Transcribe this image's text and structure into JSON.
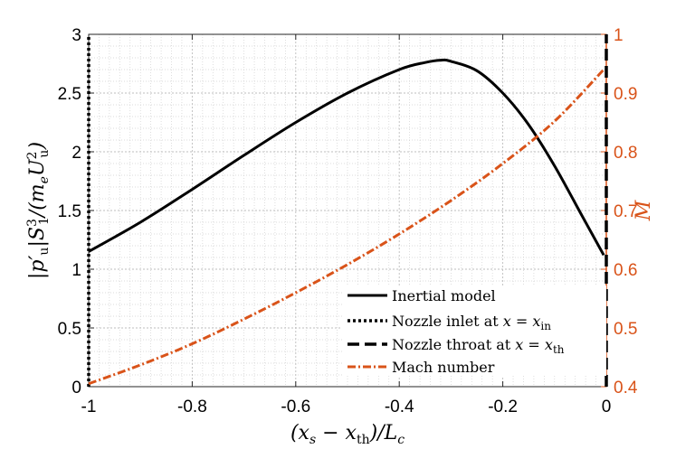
{
  "chart_data": {
    "type": "line",
    "xlabel": "(x_s − x_th)/L_c",
    "ylabel": "|p′_u| S_1^3 / (m_e U_u^2)",
    "y2label": "M",
    "xlim": [
      -1,
      0
    ],
    "ylim": [
      0,
      3
    ],
    "y2lim": [
      0.4,
      1.0
    ],
    "xticks": [
      "-1",
      "-0.8",
      "-0.6",
      "-0.4",
      "-0.2",
      "0"
    ],
    "yticks": [
      "0",
      "0.5",
      "1",
      "1.5",
      "2",
      "2.5",
      "3"
    ],
    "y2ticks": [
      "0.4",
      "0.5",
      "0.6",
      "0.7",
      "0.8",
      "0.9",
      "1"
    ],
    "grid": true,
    "legend_position": "bottom-right",
    "colors": {
      "primary": "#000000",
      "mach": "#D95319"
    },
    "series": [
      {
        "name": "Inertial model",
        "axis": "left",
        "style": "solid",
        "x": [
          -1.0,
          -0.9,
          -0.8,
          -0.7,
          -0.6,
          -0.5,
          -0.4,
          -0.35,
          -0.32,
          -0.3,
          -0.25,
          -0.2,
          -0.15,
          -0.1,
          -0.05,
          -0.005
        ],
        "y": [
          1.15,
          1.4,
          1.68,
          1.97,
          2.25,
          2.5,
          2.7,
          2.76,
          2.78,
          2.77,
          2.69,
          2.5,
          2.23,
          1.88,
          1.48,
          1.12
        ]
      },
      {
        "name": "Nozzle inlet at x = x_in",
        "axis": "left",
        "style": "dotted",
        "x": [
          -1.0,
          -1.0
        ],
        "y": [
          0,
          3
        ]
      },
      {
        "name": "Nozzle throat at x = x_th",
        "axis": "left",
        "style": "dashed",
        "x": [
          0.0,
          0.0
        ],
        "y": [
          0,
          3
        ]
      },
      {
        "name": "Mach number",
        "axis": "right",
        "style": "dashdot",
        "x": [
          -1.0,
          -0.9,
          -0.8,
          -0.7,
          -0.6,
          -0.5,
          -0.4,
          -0.3,
          -0.2,
          -0.1,
          -0.005
        ],
        "y": [
          0.405,
          0.437,
          0.473,
          0.515,
          0.56,
          0.608,
          0.66,
          0.717,
          0.78,
          0.852,
          0.94
        ]
      }
    ]
  }
}
